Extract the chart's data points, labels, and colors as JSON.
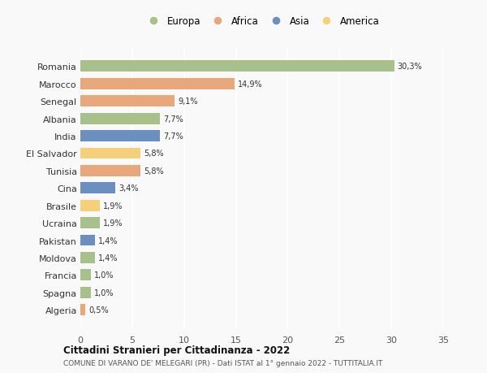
{
  "countries": [
    "Romania",
    "Marocco",
    "Senegal",
    "Albania",
    "India",
    "El Salvador",
    "Tunisia",
    "Cina",
    "Brasile",
    "Ucraina",
    "Pakistan",
    "Moldova",
    "Francia",
    "Spagna",
    "Algeria"
  ],
  "values": [
    30.3,
    14.9,
    9.1,
    7.7,
    7.7,
    5.8,
    5.8,
    3.4,
    1.9,
    1.9,
    1.4,
    1.4,
    1.0,
    1.0,
    0.5
  ],
  "labels": [
    "30,3%",
    "14,9%",
    "9,1%",
    "7,7%",
    "7,7%",
    "5,8%",
    "5,8%",
    "3,4%",
    "1,9%",
    "1,9%",
    "1,4%",
    "1,4%",
    "1,0%",
    "1,0%",
    "0,5%"
  ],
  "continents": [
    "Europa",
    "Africa",
    "Africa",
    "Europa",
    "Asia",
    "America",
    "Africa",
    "Asia",
    "America",
    "Europa",
    "Asia",
    "Europa",
    "Europa",
    "Europa",
    "Africa"
  ],
  "continent_colors": {
    "Europa": "#a8c08a",
    "Africa": "#e8a87c",
    "Asia": "#6b8fbf",
    "America": "#f5d07a"
  },
  "legend_order": [
    "Europa",
    "Africa",
    "Asia",
    "America"
  ],
  "title": "Cittadini Stranieri per Cittadinanza - 2022",
  "subtitle": "COMUNE DI VARANO DE' MELEGARI (PR) - Dati ISTAT al 1° gennaio 2022 - TUTTITALIA.IT",
  "xlim": [
    0,
    35
  ],
  "xticks": [
    0,
    5,
    10,
    15,
    20,
    25,
    30,
    35
  ],
  "background_color": "#f9f9f9",
  "grid_color": "#ffffff",
  "bar_height": 0.65
}
